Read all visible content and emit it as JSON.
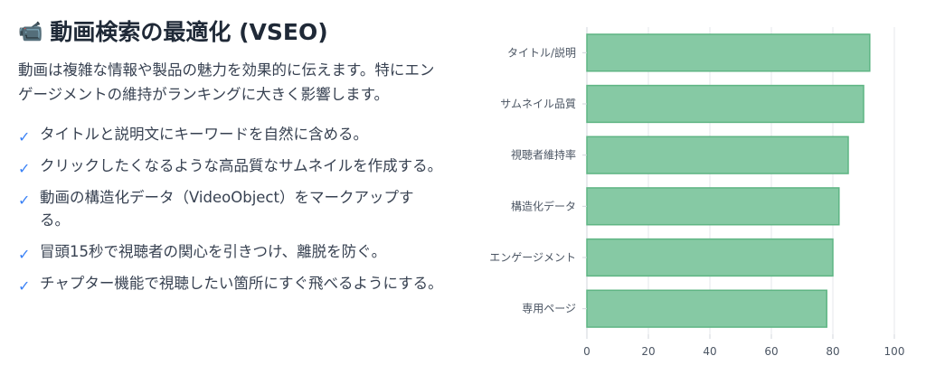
{
  "header": {
    "icon": "video-camera-icon",
    "icon_glyph": "📹",
    "title": "動画検索の最適化 (VSEO)"
  },
  "intro": "動画は複雑な情報や製品の魅力を効果的に伝えます。特にエンゲージメントの維持がランキングに大きく影響します。",
  "points": [
    {
      "check": "✓",
      "text": "タイトルと説明文にキーワードを自然に含める。"
    },
    {
      "check": "✓",
      "text": "クリックしたくなるような高品質なサムネイルを作成する。"
    },
    {
      "check": "✓",
      "text": "動画の構造化データ（VideoObject）をマークアップする。"
    },
    {
      "check": "✓",
      "text": "冒頭15秒で視聴者の関心を引きつけ、離脱を防ぐ。"
    },
    {
      "check": "✓",
      "text": "チャプター機能で視聴したい箇所にすぐ飛べるようにする。"
    }
  ],
  "colors": {
    "accent": "#3b82f6",
    "bar_fill": "#86c9a4",
    "bar_stroke": "#5fb584"
  },
  "chart_data": {
    "type": "bar",
    "orientation": "horizontal",
    "categories": [
      "タイトル/説明",
      "サムネイル品質",
      "視聴者維持率",
      "構造化データ",
      "エンゲージメント",
      "専用ページ"
    ],
    "values": [
      92,
      90,
      85,
      82,
      80,
      78
    ],
    "xlim": [
      0,
      100
    ],
    "xticks": [
      "0",
      "20",
      "40",
      "60",
      "80",
      "100"
    ],
    "grid": true,
    "legend": "none"
  }
}
